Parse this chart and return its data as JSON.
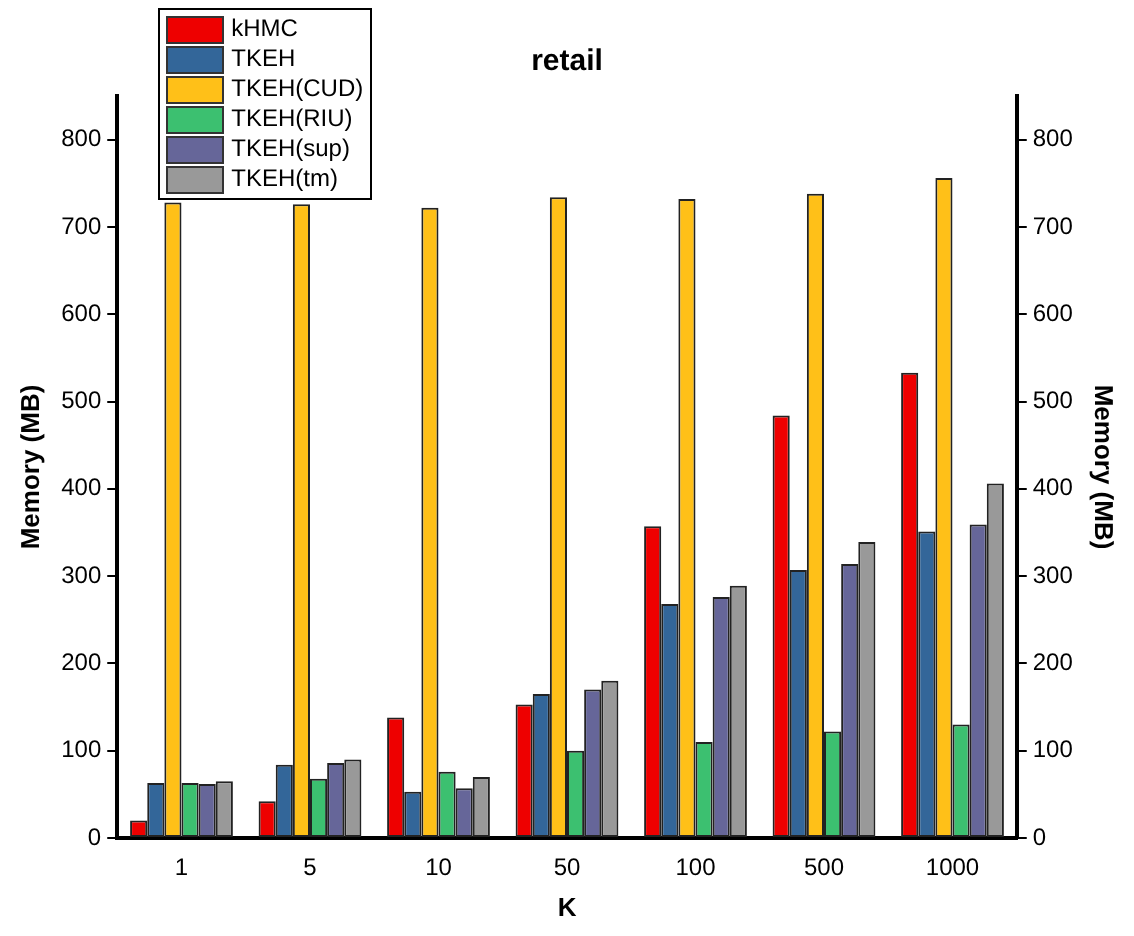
{
  "chart_data": {
    "type": "bar",
    "title": "retail",
    "xlabel": "K",
    "ylabel": "Memory (MB)",
    "y2label": "Memory (MB)",
    "categories": [
      "1",
      "5",
      "10",
      "50",
      "100",
      "500",
      "1000"
    ],
    "series": [
      {
        "name": "kHMC",
        "color": "#ee0000",
        "values": [
          20,
          42,
          138,
          153,
          357,
          484,
          533
        ]
      },
      {
        "name": "TKEH",
        "color": "#336699",
        "values": [
          63,
          84,
          53,
          165,
          268,
          307,
          351
        ]
      },
      {
        "name": "TKEH(CUD)",
        "color": "#ffc018",
        "values": [
          728,
          726,
          722,
          734,
          732,
          738,
          756
        ]
      },
      {
        "name": "TKEH(RIU)",
        "color": "#3cc070",
        "values": [
          63,
          68,
          76,
          100,
          110,
          122,
          130
        ]
      },
      {
        "name": "TKEH(sup)",
        "color": "#666699",
        "values": [
          62,
          86,
          57,
          170,
          276,
          314,
          359
        ]
      },
      {
        "name": "TKEH(tm)",
        "color": "#999999",
        "values": [
          65,
          90,
          70,
          180,
          289,
          339,
          406
        ]
      }
    ],
    "ylim": [
      0,
      850
    ],
    "yticks": [
      0,
      100,
      200,
      300,
      400,
      500,
      600,
      700,
      800
    ],
    "y2lim": [
      0,
      850
    ],
    "y2ticks": [
      0,
      100,
      200,
      300,
      400,
      500,
      600,
      700,
      800
    ],
    "grid": false,
    "legend": "top left"
  }
}
